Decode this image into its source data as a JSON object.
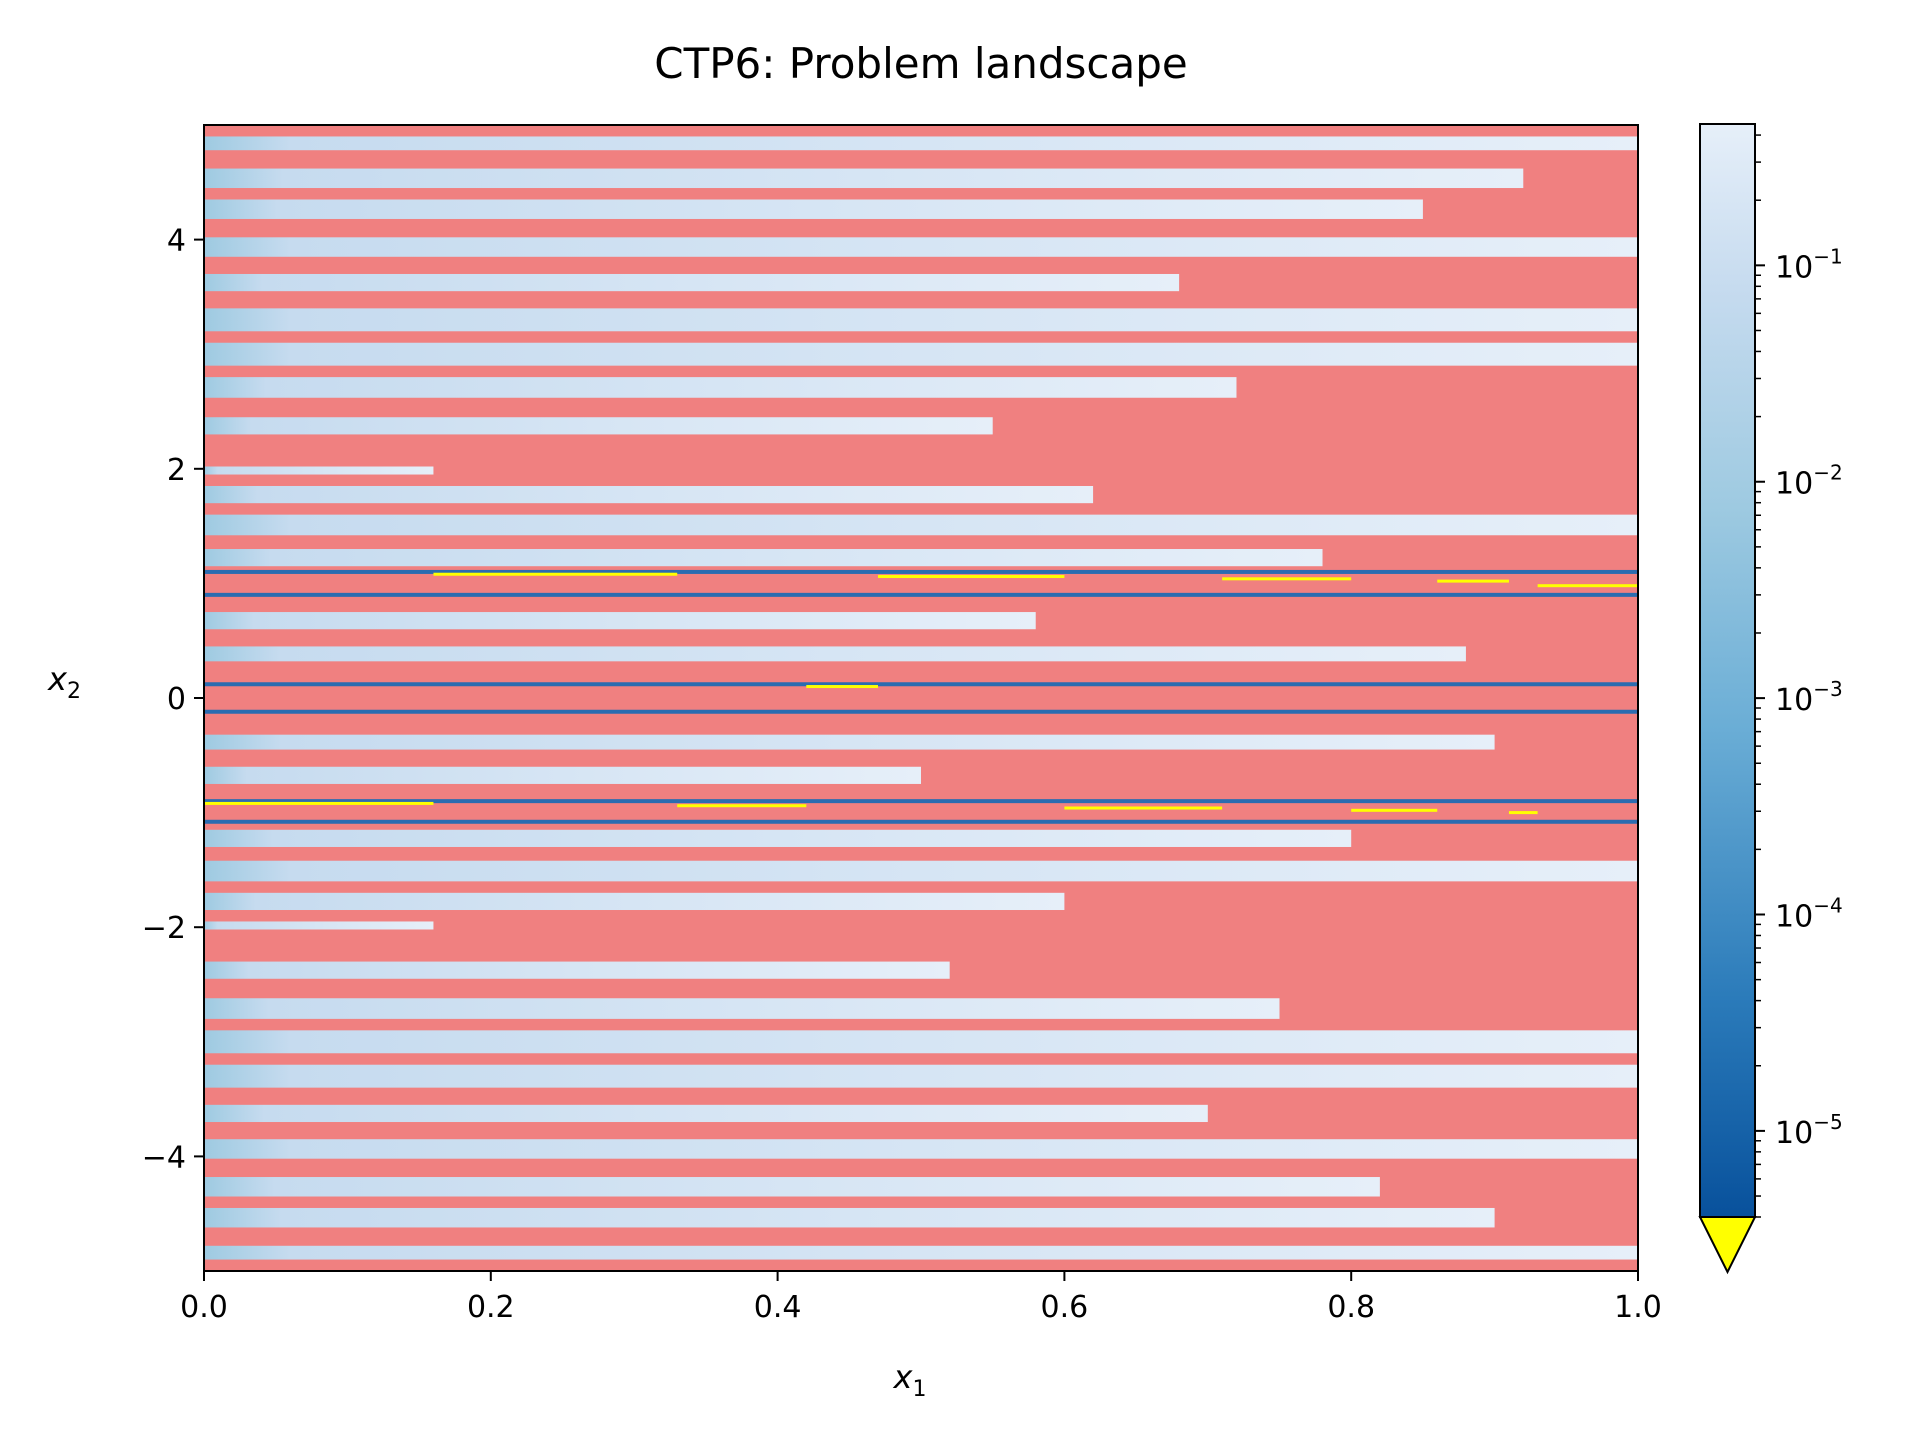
{
  "chart_data": {
    "type": "heatmap",
    "title": "CTP6: Problem landscape",
    "xlabel": {
      "base": "x",
      "sub": "1"
    },
    "ylabel": {
      "base": "x",
      "sub": "2"
    },
    "xlim": [
      0.0,
      1.0
    ],
    "ylim": [
      -5,
      5
    ],
    "x_ticks": [
      0.0,
      0.2,
      0.4,
      0.6,
      0.8,
      1.0
    ],
    "x_tick_labels": [
      "0.0",
      "0.2",
      "0.4",
      "0.6",
      "0.8",
      "1.0"
    ],
    "y_ticks": [
      4,
      2,
      0,
      -2,
      -4
    ],
    "y_tick_labels": [
      "4",
      "2",
      "0",
      "−2",
      "−4"
    ],
    "infeasible_color": "#f08080",
    "below_range_color": "#ffff00",
    "colormap": [
      "#08519c",
      "#3182bd",
      "#6baed6",
      "#9ecae1",
      "#c6dbef",
      "#deebf7",
      "#e6eff9"
    ],
    "colorbar": {
      "scale": "log",
      "range": [
        4e-06,
        0.45
      ],
      "ticks": [
        {
          "value": 0.1,
          "base": "10",
          "exp": "−1"
        },
        {
          "value": 0.01,
          "base": "10",
          "exp": "−2"
        },
        {
          "value": 0.001,
          "base": "10",
          "exp": "−3"
        },
        {
          "value": 0.0001,
          "base": "10",
          "exp": "−4"
        },
        {
          "value": 1e-05,
          "base": "10",
          "exp": "−5"
        }
      ],
      "extend": "min"
    },
    "feasible_bands": [
      {
        "y": [
          -4.9,
          -4.78
        ],
        "x": [
          0.0,
          1.0
        ]
      },
      {
        "y": [
          -4.62,
          -4.45
        ],
        "x": [
          0.0,
          0.9
        ]
      },
      {
        "y": [
          -4.35,
          -4.18
        ],
        "x": [
          0.0,
          0.82
        ]
      },
      {
        "y": [
          -4.02,
          -3.85
        ],
        "x": [
          0.0,
          1.0
        ]
      },
      {
        "y": [
          -3.7,
          -3.55
        ],
        "x": [
          0.0,
          0.7
        ]
      },
      {
        "y": [
          -3.4,
          -3.2
        ],
        "x": [
          0.0,
          1.0
        ]
      },
      {
        "y": [
          -3.1,
          -2.9
        ],
        "x": [
          0.0,
          1.0
        ]
      },
      {
        "y": [
          -2.8,
          -2.62
        ],
        "x": [
          0.0,
          0.75
        ]
      },
      {
        "y": [
          -2.45,
          -2.3
        ],
        "x": [
          0.0,
          0.52
        ]
      },
      {
        "y": [
          -2.02,
          -1.95
        ],
        "x": [
          0.0,
          0.16
        ]
      },
      {
        "y": [
          -1.85,
          -1.7
        ],
        "x": [
          0.0,
          0.6
        ]
      },
      {
        "y": [
          -1.6,
          -1.42
        ],
        "x": [
          0.0,
          1.0
        ]
      },
      {
        "y": [
          -1.3,
          -1.15
        ],
        "x": [
          0.0,
          0.8
        ]
      },
      {
        "y": [
          -0.75,
          -0.6
        ],
        "x": [
          0.0,
          0.5
        ]
      },
      {
        "y": [
          -0.45,
          -0.32
        ],
        "x": [
          0.0,
          0.9
        ]
      },
      {
        "y": [
          0.32,
          0.45
        ],
        "x": [
          0.0,
          0.88
        ]
      },
      {
        "y": [
          0.6,
          0.75
        ],
        "x": [
          0.0,
          0.58
        ]
      },
      {
        "y": [
          1.15,
          1.3
        ],
        "x": [
          0.0,
          0.78
        ]
      },
      {
        "y": [
          1.42,
          1.6
        ],
        "x": [
          0.0,
          1.0
        ]
      },
      {
        "y": [
          1.7,
          1.85
        ],
        "x": [
          0.0,
          0.62
        ]
      },
      {
        "y": [
          1.95,
          2.02
        ],
        "x": [
          0.0,
          0.16
        ]
      },
      {
        "y": [
          2.3,
          2.45
        ],
        "x": [
          0.0,
          0.55
        ]
      },
      {
        "y": [
          2.62,
          2.8
        ],
        "x": [
          0.0,
          0.72
        ]
      },
      {
        "y": [
          2.9,
          3.1
        ],
        "x": [
          0.0,
          1.0
        ]
      },
      {
        "y": [
          3.2,
          3.4
        ],
        "x": [
          0.0,
          1.0
        ]
      },
      {
        "y": [
          3.55,
          3.7
        ],
        "x": [
          0.0,
          0.68
        ]
      },
      {
        "y": [
          3.85,
          4.02
        ],
        "x": [
          0.0,
          1.0
        ]
      },
      {
        "y": [
          4.18,
          4.35
        ],
        "x": [
          0.0,
          0.85
        ]
      },
      {
        "y": [
          4.45,
          4.62
        ],
        "x": [
          0.0,
          0.92
        ]
      },
      {
        "y": [
          4.78,
          4.9
        ],
        "x": [
          0.0,
          1.0
        ]
      }
    ],
    "below_range_segments": [
      {
        "y": 1.08,
        "x": [
          0.16,
          0.33
        ]
      },
      {
        "y": 1.06,
        "x": [
          0.47,
          0.6
        ]
      },
      {
        "y": 1.04,
        "x": [
          0.71,
          0.8
        ]
      },
      {
        "y": 1.02,
        "x": [
          0.86,
          0.91
        ]
      },
      {
        "y": 0.98,
        "x": [
          0.93,
          1.0
        ]
      },
      {
        "y": 0.1,
        "x": [
          0.42,
          0.47
        ]
      },
      {
        "y": -0.92,
        "x": [
          0.0,
          0.16
        ]
      },
      {
        "y": -0.94,
        "x": [
          0.33,
          0.42
        ]
      },
      {
        "y": -0.96,
        "x": [
          0.6,
          0.71
        ]
      },
      {
        "y": -0.98,
        "x": [
          0.8,
          0.86
        ]
      },
      {
        "y": -1.0,
        "x": [
          0.91,
          0.93
        ]
      }
    ],
    "dark_lines": [
      {
        "y": 1.1
      },
      {
        "y": 0.9
      },
      {
        "y": 0.12
      },
      {
        "y": -0.12
      },
      {
        "y": -1.08
      },
      {
        "y": -0.9
      }
    ]
  }
}
